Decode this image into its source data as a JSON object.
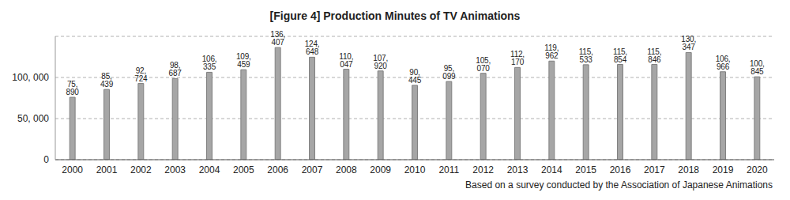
{
  "chart_data": {
    "type": "bar",
    "title": "[Figure 4] Production Minutes of TV Animations",
    "note": "Based on a survey conducted by the Association of Japanese Animations",
    "categories": [
      "2000",
      "2001",
      "2002",
      "2003",
      "2004",
      "2005",
      "2006",
      "2007",
      "2008",
      "2009",
      "2010",
      "2011",
      "2012",
      "2013",
      "2014",
      "2015",
      "2016",
      "2017",
      "2018",
      "2019",
      "2020"
    ],
    "values": [
      75890,
      85439,
      92724,
      98687,
      106335,
      109459,
      136407,
      124648,
      110047,
      107920,
      90445,
      95099,
      105070,
      112170,
      119962,
      115533,
      115854,
      115846,
      130347,
      106966,
      100845
    ],
    "value_labels": [
      "75, 890",
      "85, 439",
      "92, 724",
      "98, 687",
      "106, 335",
      "109, 459",
      "136, 407",
      "124, 648",
      "110, 047",
      "107, 920",
      "90, 445",
      "95, 099",
      "105, 070",
      "112, 170",
      "119, 962",
      "115, 533",
      "115, 854",
      "115, 846",
      "130, 347",
      "106, 966",
      "100, 845"
    ],
    "color": "#a6a6a6",
    "ylim": [
      0,
      150000
    ],
    "yticks": [
      0,
      {
        "value": 50000,
        "label": "50, 000"
      },
      {
        "value": 100000,
        "label": "100, 000"
      }
    ],
    "grid": true,
    "data_labels": true
  }
}
